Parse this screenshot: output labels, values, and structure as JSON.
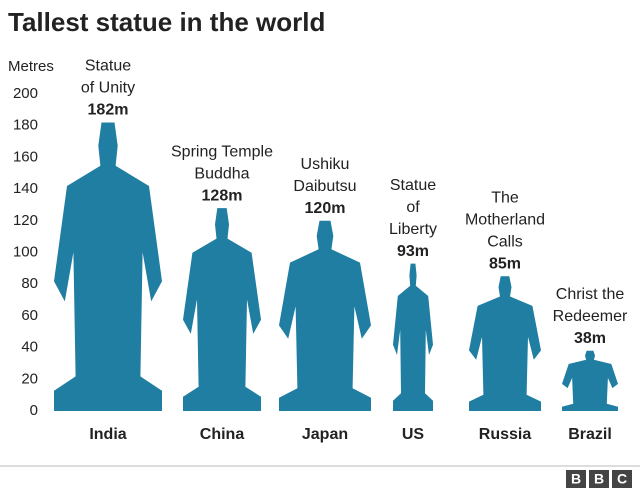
{
  "chart_data": {
    "type": "statue",
    "title": "Tallest statue in the world",
    "y_label": "Metres",
    "categories": [
      "India",
      "China",
      "Japan",
      "US",
      "Russia",
      "Brazil"
    ],
    "labels": [
      [
        "Statue",
        "of Unity"
      ],
      [
        "Spring Temple",
        "Buddha"
      ],
      [
        "Ushiku",
        "Daibutsu"
      ],
      [
        "Statue",
        "of",
        "Liberty"
      ],
      [
        "The",
        "Motherland",
        "Calls"
      ],
      [
        "Christ the",
        "Redeemer"
      ]
    ],
    "values": [
      182,
      128,
      120,
      93,
      85,
      38
    ],
    "value_labels": [
      "182m",
      "128m",
      "120m",
      "93m",
      "85m",
      "38m"
    ],
    "color": "#1f7ea1",
    "ylim": [
      0,
      200
    ],
    "yticks": [
      0,
      20,
      40,
      60,
      80,
      100,
      120,
      140,
      160,
      180,
      200
    ],
    "source": "BBC"
  }
}
